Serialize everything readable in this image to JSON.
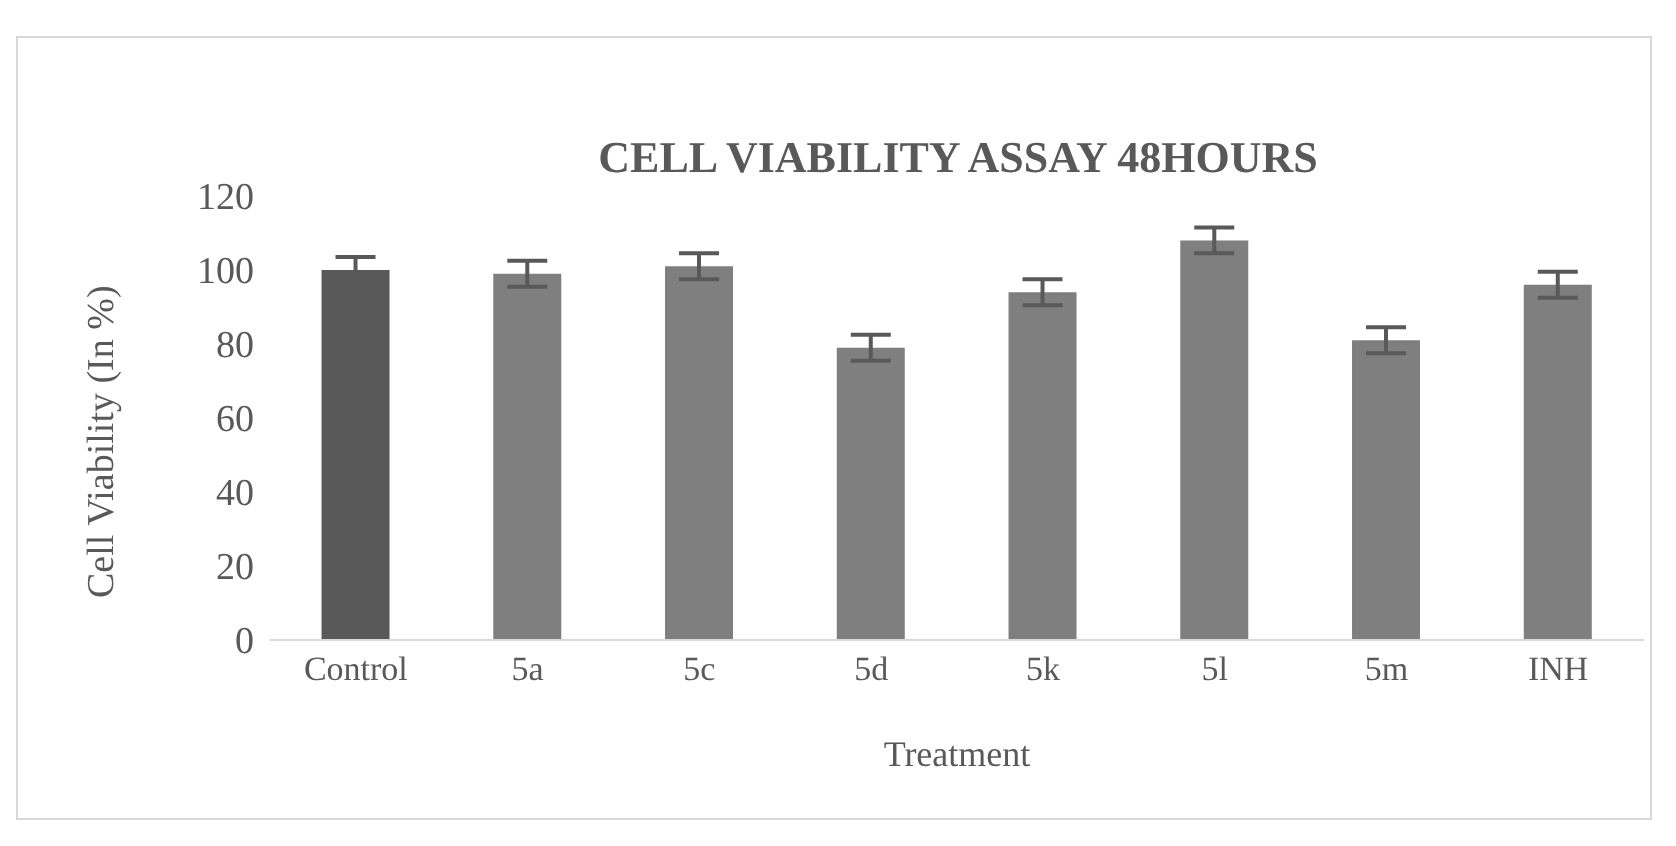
{
  "chart_data": {
    "type": "bar",
    "title": "CELL VIABILITY ASSAY 48HOURS",
    "xlabel": "Treatment",
    "ylabel": "Cell Viability (In %)",
    "categories": [
      "Control",
      "5a",
      "5c",
      "5d",
      "5k",
      "5l",
      "5m",
      "INH"
    ],
    "values": [
      100,
      99,
      101,
      79,
      94,
      108,
      81,
      96
    ],
    "colors": [
      "#595959",
      "#7f7f7f",
      "#7f7f7f",
      "#7f7f7f",
      "#7f7f7f",
      "#7f7f7f",
      "#7f7f7f",
      "#7f7f7f"
    ],
    "errors": [
      3.5,
      3.5,
      3.5,
      3.5,
      3.5,
      3.5,
      3.5,
      3.5
    ],
    "ylim": [
      0,
      120
    ],
    "yticks": [
      0,
      20,
      40,
      60,
      80,
      100,
      120
    ],
    "grid": false,
    "legend": false
  }
}
